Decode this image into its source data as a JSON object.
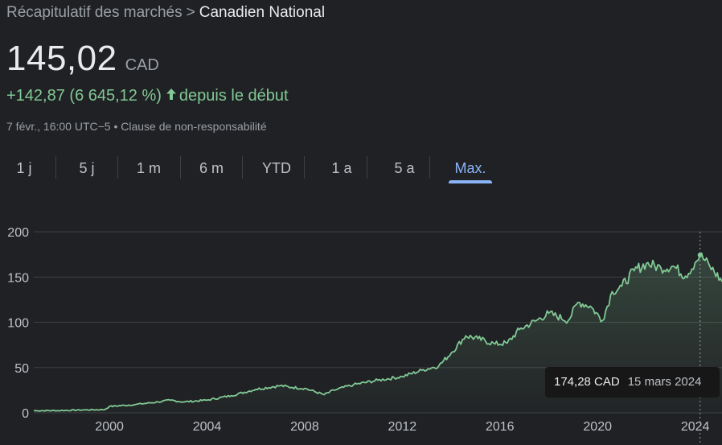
{
  "breadcrumb": {
    "parent": "Récapitulatif des marchés",
    "separator": ">",
    "current": "Canadien National"
  },
  "quote": {
    "price": "145,02",
    "currency": "CAD",
    "change": "+142,87 (6 645,12 %)",
    "change_suffix": "depuis le début",
    "timestamp": "7 févr., 16:00 UTC−5",
    "bullet": "•",
    "disclaimer": "Clause de non-responsabilité"
  },
  "tabs": [
    {
      "label": "1 j",
      "active": false
    },
    {
      "label": "5 j",
      "active": false
    },
    {
      "label": "1 m",
      "active": false
    },
    {
      "label": "6 m",
      "active": false
    },
    {
      "label": "YTD",
      "active": false
    },
    {
      "label": "1 a",
      "active": false
    },
    {
      "label": "5 a",
      "active": false
    },
    {
      "label": "Max.",
      "active": true
    }
  ],
  "tooltip": {
    "value": "174,28 CAD",
    "date": "15 mars 2024"
  },
  "colors": {
    "line": "#81c995",
    "positive": "#81c995",
    "accent": "#8ab4f8",
    "background": "#202124",
    "grid": "#3c4043"
  },
  "chart_data": {
    "type": "area",
    "x": [
      1996.9,
      1998,
      1999,
      1999.8,
      2000,
      2001,
      2002,
      2002.5,
      2003,
      2004,
      2005,
      2006,
      2007,
      2007.5,
      2008,
      2008.8,
      2009.2,
      2010,
      2011,
      2012,
      2012.8,
      2013.5,
      2014,
      2014.6,
      2015.1,
      2015.8,
      2016.3,
      2016.8,
      2017.5,
      2018,
      2018.8,
      2019.2,
      2019.7,
      2020.2,
      2020.6,
      2021,
      2021.5,
      2022,
      2022.6,
      2023.1,
      2023.6,
      2024.0,
      2024.2,
      2024.6,
      2025.1
    ],
    "y": [
      2.3,
      2.5,
      3.2,
      3.5,
      7,
      9,
      12,
      14,
      12,
      14,
      19,
      26,
      30,
      28,
      27,
      20,
      25,
      31,
      36,
      40,
      47,
      52,
      66,
      85,
      82,
      76,
      77,
      92,
      102,
      110,
      102,
      122,
      118,
      102,
      134,
      140,
      157,
      165,
      160,
      162,
      151,
      166,
      174.28,
      162,
      145.02
    ],
    "yticks": [
      "0",
      "50",
      "100",
      "150",
      "200"
    ],
    "ytick_values": [
      0,
      50,
      100,
      150,
      200
    ],
    "xticks": [
      "2000",
      "2004",
      "2008",
      "2012",
      "2016",
      "2020",
      "2024"
    ],
    "xtick_values": [
      2000,
      2004,
      2008,
      2012,
      2016,
      2020,
      2024
    ],
    "xlim": [
      1996.9,
      2025.1
    ],
    "ylim": [
      0,
      200
    ],
    "grid": true,
    "highlight": {
      "x": 2024.2,
      "y": 174.28
    }
  }
}
